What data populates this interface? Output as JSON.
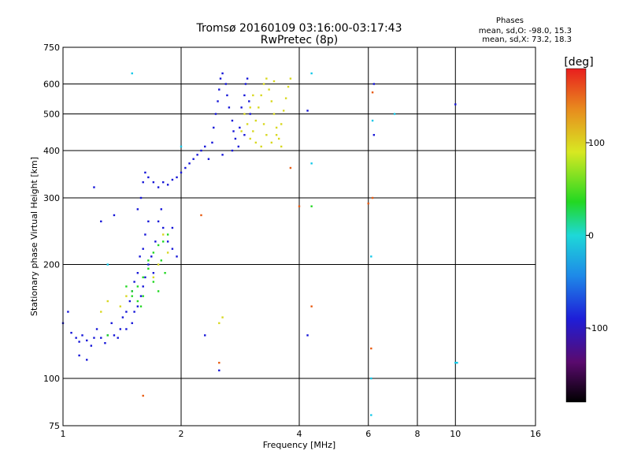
{
  "chart_data": {
    "type": "scatter",
    "title": "Tromsø 20160109 03:16:00-03:17:43",
    "subtitle": "RwPretec (8p)",
    "xlabel": "Frequency [MHz]",
    "ylabel": "Stationary phase Virtual Height [km]",
    "xscale": "log",
    "yscale": "log",
    "xlim": [
      1,
      16
    ],
    "ylim": [
      75,
      750
    ],
    "grid": true,
    "xticks": [
      1,
      2,
      4,
      6,
      8,
      10,
      16
    ],
    "xtick_labels": [
      "1",
      "2",
      "4",
      "6",
      "8",
      "10",
      "16"
    ],
    "yticks": [
      75,
      100,
      200,
      300,
      400,
      500,
      600,
      750
    ],
    "ytick_labels": [
      "75",
      "100",
      "200",
      "300",
      "400",
      "500",
      "600",
      "750"
    ],
    "stats": {
      "heading": "Phases",
      "o_line": "mean, sd,O: -98.0, 15.3",
      "x_line": "mean, sd,X:  73.2, 18.3"
    },
    "colorbar": {
      "label": "[deg]",
      "min": -180,
      "max": 180,
      "tick_values": [
        -100,
        0,
        100
      ],
      "tick_labels": [
        "-100",
        "0",
        "100"
      ]
    },
    "series": [
      {
        "color": "#1515d8",
        "points": [
          [
            1.0,
            140
          ],
          [
            1.03,
            150
          ],
          [
            1.05,
            132
          ],
          [
            1.08,
            128
          ],
          [
            1.1,
            125
          ],
          [
            1.12,
            130
          ],
          [
            1.15,
            126
          ],
          [
            1.18,
            122
          ],
          [
            1.2,
            128
          ],
          [
            1.22,
            135
          ],
          [
            1.25,
            128
          ],
          [
            1.28,
            124
          ],
          [
            1.3,
            130
          ],
          [
            1.33,
            140
          ],
          [
            1.35,
            130
          ],
          [
            1.38,
            128
          ],
          [
            1.4,
            135
          ],
          [
            1.42,
            145
          ],
          [
            1.45,
            150
          ],
          [
            1.48,
            160
          ],
          [
            1.5,
            170
          ],
          [
            1.52,
            180
          ],
          [
            1.55,
            190
          ],
          [
            1.57,
            210
          ],
          [
            1.6,
            220
          ],
          [
            1.62,
            240
          ],
          [
            1.65,
            260
          ],
          [
            1.58,
            300
          ],
          [
            1.55,
            280
          ],
          [
            1.6,
            330
          ],
          [
            1.62,
            350
          ],
          [
            1.65,
            340
          ],
          [
            1.7,
            330
          ],
          [
            1.75,
            320
          ],
          [
            1.8,
            330
          ],
          [
            1.85,
            325
          ],
          [
            1.9,
            335
          ],
          [
            1.95,
            340
          ],
          [
            2.0,
            350
          ],
          [
            2.05,
            360
          ],
          [
            2.1,
            370
          ],
          [
            2.15,
            380
          ],
          [
            2.2,
            390
          ],
          [
            2.25,
            400
          ],
          [
            2.3,
            410
          ],
          [
            2.35,
            380
          ],
          [
            2.4,
            420
          ],
          [
            2.42,
            460
          ],
          [
            2.45,
            500
          ],
          [
            2.48,
            540
          ],
          [
            2.5,
            580
          ],
          [
            2.52,
            620
          ],
          [
            2.55,
            640
          ],
          [
            2.6,
            600
          ],
          [
            2.62,
            560
          ],
          [
            2.65,
            520
          ],
          [
            2.7,
            480
          ],
          [
            2.72,
            450
          ],
          [
            2.75,
            430
          ],
          [
            2.8,
            410
          ],
          [
            2.82,
            460
          ],
          [
            2.85,
            520
          ],
          [
            2.9,
            560
          ],
          [
            2.92,
            600
          ],
          [
            2.95,
            620
          ],
          [
            2.98,
            540
          ],
          [
            3.0,
            500
          ],
          [
            2.9,
            440
          ],
          [
            2.7,
            400
          ],
          [
            2.55,
            390
          ],
          [
            1.75,
            260
          ],
          [
            1.78,
            280
          ],
          [
            1.8,
            250
          ],
          [
            1.72,
            230
          ],
          [
            1.68,
            210
          ],
          [
            1.65,
            200
          ],
          [
            1.62,
            185
          ],
          [
            1.6,
            175
          ],
          [
            1.58,
            165
          ],
          [
            1.55,
            155
          ],
          [
            1.2,
            320
          ],
          [
            1.35,
            270
          ],
          [
            1.25,
            260
          ],
          [
            1.1,
            115
          ],
          [
            1.15,
            112
          ],
          [
            1.5,
            140
          ],
          [
            1.45,
            135
          ],
          [
            1.85,
            230
          ],
          [
            1.9,
            220
          ],
          [
            1.95,
            210
          ],
          [
            2.3,
            130
          ],
          [
            2.5,
            105
          ],
          [
            4.2,
            130
          ],
          [
            6.2,
            440
          ],
          [
            6.2,
            600
          ],
          [
            10.0,
            530
          ],
          [
            4.2,
            510
          ],
          [
            1.9,
            250
          ],
          [
            1.7,
            190
          ],
          [
            1.52,
            150
          ]
        ]
      },
      {
        "color": "#d8d820",
        "points": [
          [
            2.85,
            450
          ],
          [
            2.9,
            500
          ],
          [
            2.95,
            470
          ],
          [
            3.0,
            430
          ],
          [
            3.05,
            450
          ],
          [
            3.1,
            480
          ],
          [
            3.15,
            520
          ],
          [
            3.2,
            560
          ],
          [
            3.25,
            600
          ],
          [
            3.3,
            620
          ],
          [
            3.35,
            580
          ],
          [
            3.4,
            540
          ],
          [
            3.45,
            500
          ],
          [
            3.5,
            460
          ],
          [
            3.55,
            430
          ],
          [
            3.6,
            470
          ],
          [
            3.65,
            510
          ],
          [
            3.7,
            550
          ],
          [
            3.75,
            590
          ],
          [
            3.8,
            620
          ],
          [
            3.1,
            420
          ],
          [
            3.2,
            410
          ],
          [
            3.3,
            440
          ],
          [
            3.4,
            420
          ],
          [
            3.5,
            440
          ],
          [
            3.0,
            520
          ],
          [
            3.05,
            560
          ],
          [
            3.25,
            470
          ],
          [
            3.45,
            610
          ],
          [
            3.6,
            410
          ],
          [
            1.8,
            240
          ],
          [
            1.85,
            215
          ],
          [
            1.75,
            200
          ],
          [
            1.7,
            185
          ],
          [
            2.55,
            145
          ],
          [
            2.5,
            140
          ],
          [
            1.25,
            150
          ],
          [
            1.3,
            160
          ],
          [
            1.4,
            155
          ],
          [
            1.45,
            165
          ]
        ]
      },
      {
        "color": "#22d822",
        "points": [
          [
            1.55,
            175
          ],
          [
            1.6,
            185
          ],
          [
            1.65,
            195
          ],
          [
            1.7,
            180
          ],
          [
            1.75,
            170
          ],
          [
            1.6,
            165
          ],
          [
            1.55,
            160
          ],
          [
            1.5,
            170
          ],
          [
            1.65,
            205
          ],
          [
            1.7,
            215
          ],
          [
            1.75,
            225
          ],
          [
            1.8,
            230
          ],
          [
            1.85,
            240
          ],
          [
            1.78,
            205
          ],
          [
            1.82,
            190
          ],
          [
            1.45,
            175
          ],
          [
            1.5,
            165
          ],
          [
            1.58,
            155
          ],
          [
            4.3,
            285
          ],
          [
            1.3,
            130
          ]
        ]
      },
      {
        "color": "#15c8e8",
        "points": [
          [
            1.5,
            640
          ],
          [
            4.3,
            640
          ],
          [
            4.3,
            370
          ],
          [
            6.1,
            210
          ],
          [
            6.15,
            480
          ],
          [
            6.1,
            80
          ],
          [
            6.1,
            100
          ],
          [
            10.0,
            110
          ],
          [
            10.1,
            110
          ],
          [
            7.0,
            500
          ],
          [
            1.3,
            200
          ],
          [
            2.0,
            410
          ]
        ]
      },
      {
        "color": "#e85a10",
        "points": [
          [
            1.6,
            90
          ],
          [
            4.3,
            155
          ],
          [
            6.1,
            120
          ],
          [
            6.0,
            290
          ],
          [
            2.5,
            110
          ],
          [
            2.25,
            270
          ],
          [
            3.8,
            360
          ],
          [
            4.0,
            285
          ],
          [
            6.15,
            570
          ],
          [
            6.15,
            300
          ]
        ]
      }
    ]
  }
}
